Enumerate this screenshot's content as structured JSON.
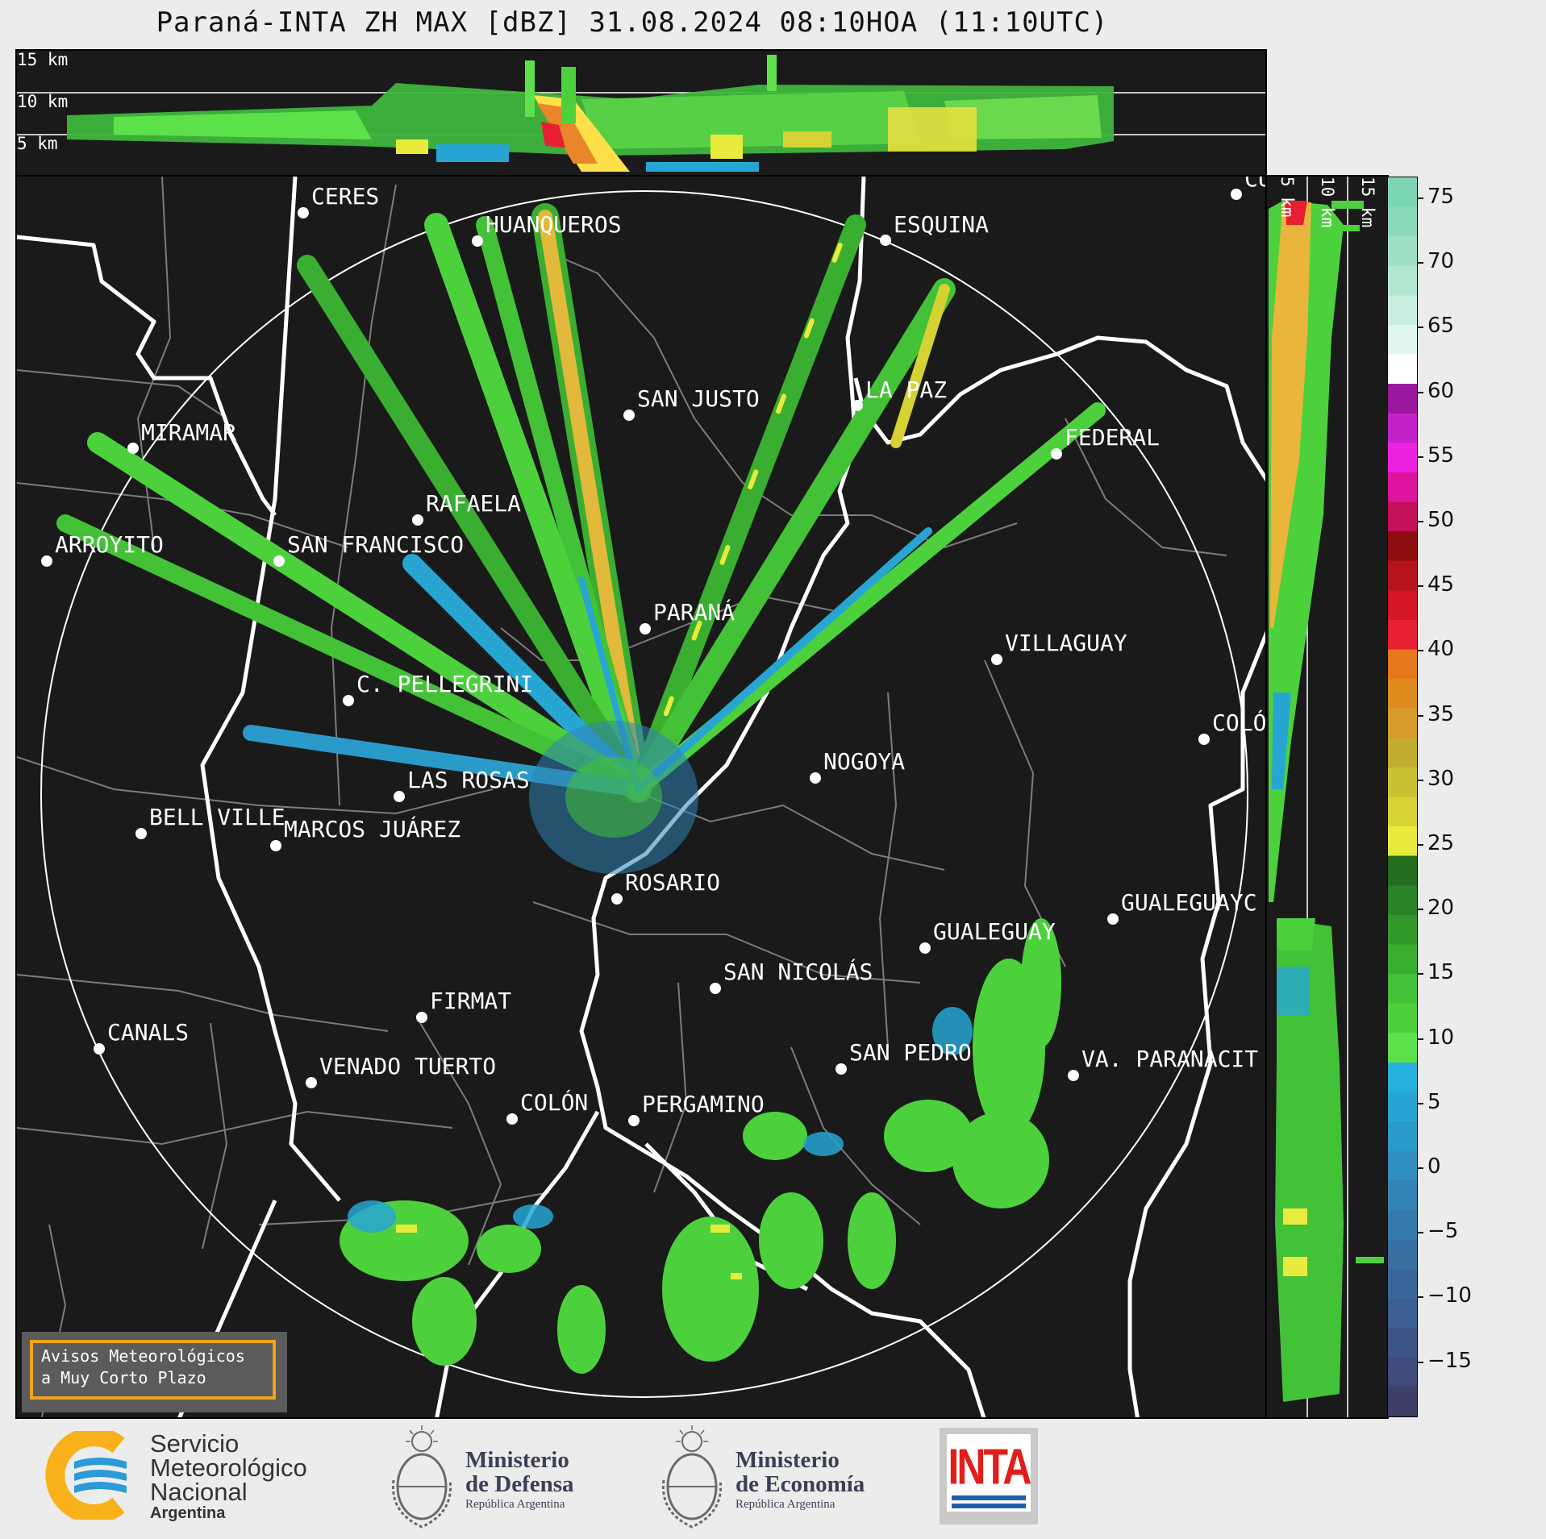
{
  "title": "Paraná-INTA ZH MAX [dBZ] 31.08.2024 08:10HOA (11:10UTC)",
  "top_section": {
    "labels": [
      "15 km",
      "10 km",
      "5 km"
    ]
  },
  "side_section": {
    "labels": [
      "5 km",
      "10 km",
      "15 km"
    ]
  },
  "cities": [
    {
      "name": "CERES"
    },
    {
      "name": "HUANQUEROS"
    },
    {
      "name": "ESQUINA"
    },
    {
      "name": "CU"
    },
    {
      "name": "SAN JUSTO"
    },
    {
      "name": "LA PAZ"
    },
    {
      "name": "FEDERAL"
    },
    {
      "name": "MIRAMAR"
    },
    {
      "name": "RAFAELA"
    },
    {
      "name": "ARROYITO"
    },
    {
      "name": "SAN FRANCISCO"
    },
    {
      "name": "PARANÁ"
    },
    {
      "name": "VILLAGUAY"
    },
    {
      "name": "C. PELLEGRINI"
    },
    {
      "name": "COLÓ"
    },
    {
      "name": "NOGOYA"
    },
    {
      "name": "LAS ROSAS"
    },
    {
      "name": "BELL VILLE"
    },
    {
      "name": "MARCOS JUÁREZ"
    },
    {
      "name": "ROSARIO"
    },
    {
      "name": "GUALEGUAYC"
    },
    {
      "name": "GUALEGUAY"
    },
    {
      "name": "SAN NICOLÁS"
    },
    {
      "name": "FIRMAT"
    },
    {
      "name": "CANALS"
    },
    {
      "name": "SAN PEDRO"
    },
    {
      "name": "VENADO TUERTO"
    },
    {
      "name": "VA. PARANACIT"
    },
    {
      "name": "COLÓN"
    },
    {
      "name": "PERGAMINO"
    }
  ],
  "colorbar": {
    "unit": "dBZ",
    "ticks": [
      "75",
      "70",
      "65",
      "60",
      "55",
      "50",
      "45",
      "40",
      "35",
      "30",
      "25",
      "20",
      "15",
      "10",
      "5",
      "0",
      "−5",
      "−10",
      "−15"
    ],
    "colors": [
      "#3c3f66",
      "#3f4a7a",
      "#3d5488",
      "#3c5e92",
      "#3a6799",
      "#3870a1",
      "#357aab",
      "#3384b5",
      "#308fbe",
      "#2a9bc9",
      "#27a6d4",
      "#25b1dd",
      "#5de14a",
      "#4cd13d",
      "#43c137",
      "#3aae31",
      "#32982a",
      "#2b8225",
      "#236d1f",
      "#e9eb3c",
      "#d6d233",
      "#c9c232",
      "#c3ad2c",
      "#d69c27",
      "#dc8b1c",
      "#e4781a",
      "#e71f32",
      "#d41626",
      "#b4131d",
      "#8d0c10",
      "#c3115b",
      "#df149e",
      "#ec22e0",
      "#c322c9",
      "#9a189f",
      "#ffffff",
      "#e1f6ef",
      "#c8eedf",
      "#b2e6d1",
      "#9de0c6",
      "#8ad9b9",
      "#7dd6b3"
    ]
  },
  "notice": {
    "line1": "Avisos Meteorológicos",
    "line2": "a Muy Corto Plazo"
  },
  "logos": {
    "smn": {
      "line1": "Servicio",
      "line2": "Meteorológico",
      "line3": "Nacional",
      "line4": "Argentina"
    },
    "defensa": {
      "line1": "Ministerio",
      "line2": "de Defensa",
      "line3": "República Argentina"
    },
    "economia": {
      "line1": "Ministerio",
      "line2": "de Economía",
      "line3": "República Argentina"
    },
    "inta": {
      "word": "INTA"
    }
  }
}
